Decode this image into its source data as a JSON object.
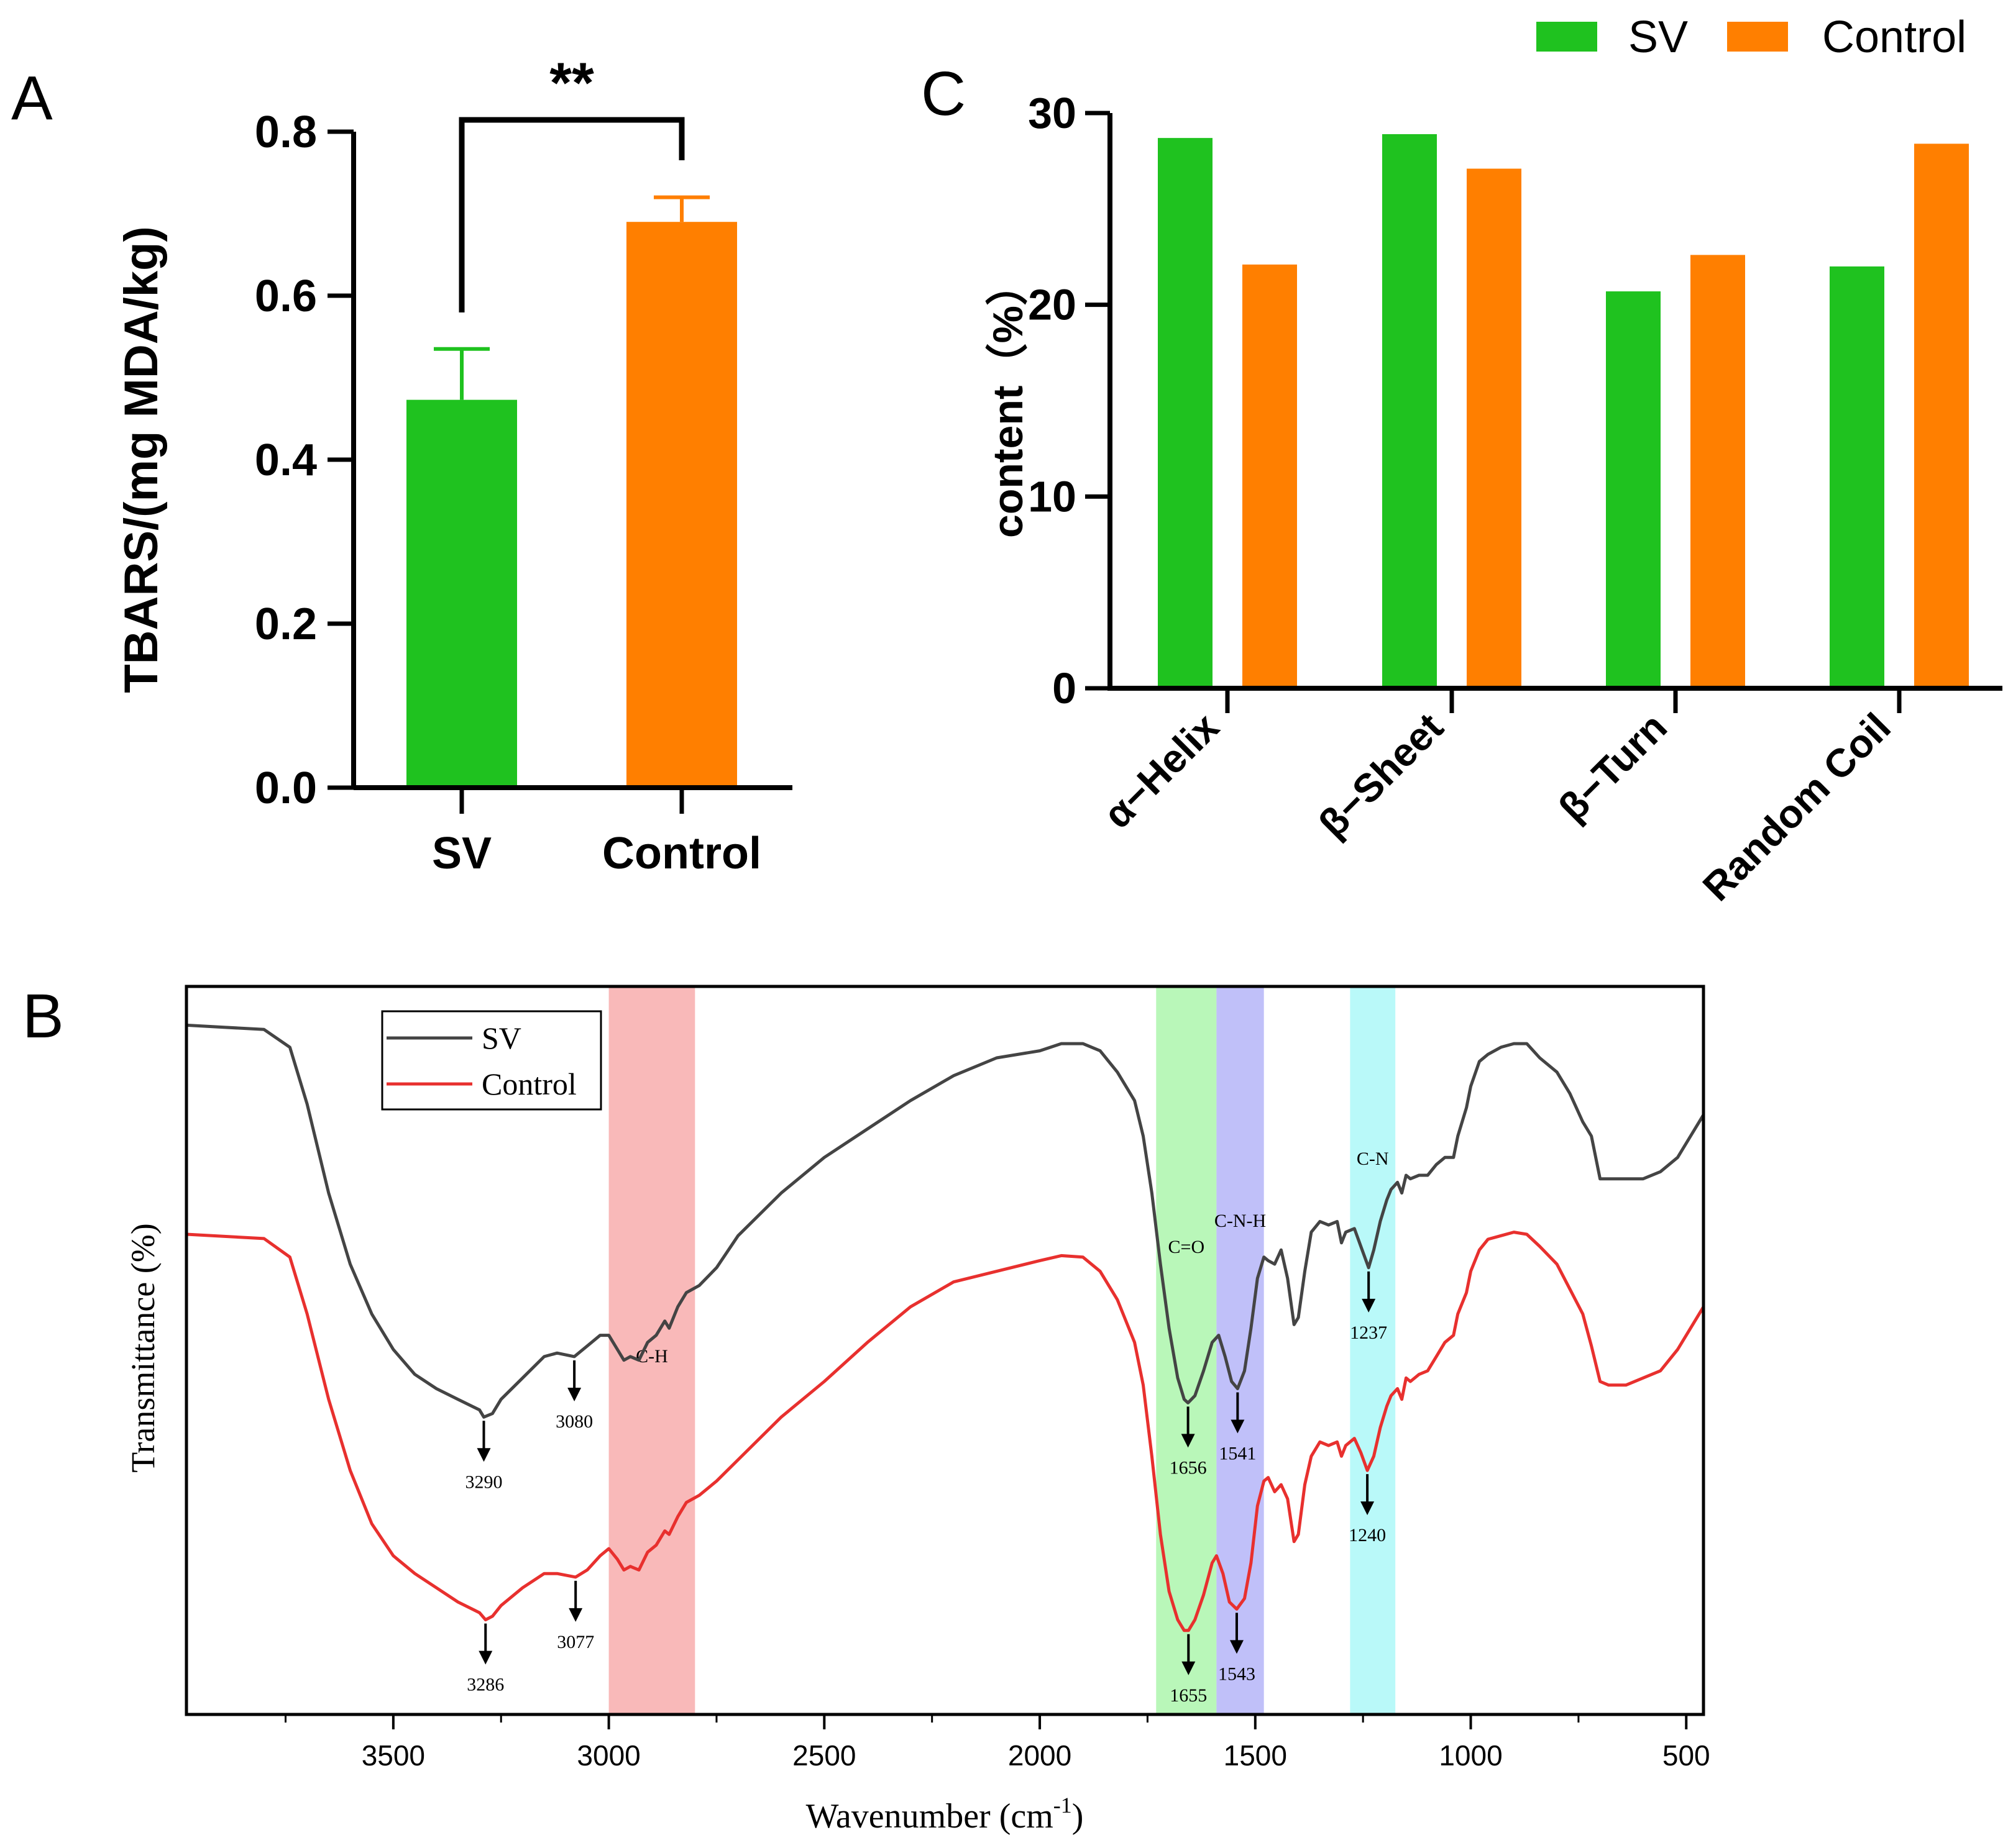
{
  "panels": {
    "a": {
      "letter": "A"
    },
    "b": {
      "letter": "B"
    },
    "c": {
      "letter": "C"
    }
  },
  "chart_data": [
    {
      "panel": "A",
      "type": "bar",
      "categories": [
        "SV",
        "Control"
      ],
      "values": [
        0.473,
        0.69
      ],
      "errors": [
        0.062,
        0.03
      ],
      "colors": [
        "#1fc21f",
        "#ff7f00"
      ],
      "ylabel": "TBARS/(mg MDA/kg)",
      "ylim": [
        0,
        0.8
      ],
      "yticks": [
        "0.0",
        "0.2",
        "0.4",
        "0.6",
        "0.8"
      ],
      "significance": "**"
    },
    {
      "panel": "C",
      "type": "bar",
      "categories": [
        "α−Helix",
        "β−Sheet",
        "β−Turn",
        "Random Coil"
      ],
      "series": [
        {
          "name": "SV",
          "color": "#1fc21f",
          "values": [
            28.7,
            28.9,
            20.7,
            22.0
          ]
        },
        {
          "name": "Control",
          "color": "#ff7f00",
          "values": [
            22.1,
            27.1,
            22.6,
            28.4
          ]
        }
      ],
      "ylabel": "content（%）",
      "ylim": [
        0,
        30
      ],
      "yticks": [
        "0",
        "10",
        "20",
        "30"
      ],
      "legend": {
        "position": "top-right",
        "labels": [
          "SV",
          "Control"
        ]
      }
    },
    {
      "panel": "B",
      "type": "line",
      "title": "",
      "xlabel": "Wavenumber (cm",
      "xlabel_sup": "-1",
      "xlabel_close": ")",
      "ylabel": "Transmittance (%)",
      "xlim": [
        3980,
        460
      ],
      "xticks": [
        "3500",
        "3000",
        "2500",
        "2000",
        "1500",
        "1000",
        "500"
      ],
      "legend": {
        "position": "top-left",
        "labels": [
          "SV",
          "Control"
        ]
      },
      "series": [
        {
          "name": "SV",
          "color": "#444444",
          "points": [
            [
              3980,
              0.956
            ],
            [
              3800,
              0.95
            ],
            [
              3740,
              0.925
            ],
            [
              3700,
              0.845
            ],
            [
              3650,
              0.72
            ],
            [
              3600,
              0.62
            ],
            [
              3550,
              0.55
            ],
            [
              3500,
              0.5
            ],
            [
              3450,
              0.465
            ],
            [
              3400,
              0.445
            ],
            [
              3350,
              0.43
            ],
            [
              3300,
              0.415
            ],
            [
              3290,
              0.405
            ],
            [
              3270,
              0.41
            ],
            [
              3250,
              0.43
            ],
            [
              3200,
              0.46
            ],
            [
              3150,
              0.49
            ],
            [
              3120,
              0.495
            ],
            [
              3080,
              0.49
            ],
            [
              3050,
              0.505
            ],
            [
              3020,
              0.52
            ],
            [
              3000,
              0.52
            ],
            [
              2980,
              0.5
            ],
            [
              2965,
              0.485
            ],
            [
              2950,
              0.49
            ],
            [
              2930,
              0.485
            ],
            [
              2910,
              0.51
            ],
            [
              2890,
              0.52
            ],
            [
              2870,
              0.54
            ],
            [
              2860,
              0.53
            ],
            [
              2840,
              0.56
            ],
            [
              2820,
              0.58
            ],
            [
              2790,
              0.59
            ],
            [
              2750,
              0.615
            ],
            [
              2700,
              0.66
            ],
            [
              2600,
              0.72
            ],
            [
              2500,
              0.77
            ],
            [
              2400,
              0.81
            ],
            [
              2300,
              0.85
            ],
            [
              2200,
              0.885
            ],
            [
              2100,
              0.91
            ],
            [
              2000,
              0.92
            ],
            [
              1950,
              0.93
            ],
            [
              1900,
              0.93
            ],
            [
              1860,
              0.92
            ],
            [
              1820,
              0.89
            ],
            [
              1780,
              0.85
            ],
            [
              1760,
              0.8
            ],
            [
              1740,
              0.72
            ],
            [
              1720,
              0.62
            ],
            [
              1700,
              0.53
            ],
            [
              1680,
              0.46
            ],
            [
              1665,
              0.43
            ],
            [
              1656,
              0.425
            ],
            [
              1640,
              0.435
            ],
            [
              1620,
              0.47
            ],
            [
              1600,
              0.51
            ],
            [
              1585,
              0.52
            ],
            [
              1570,
              0.49
            ],
            [
              1555,
              0.455
            ],
            [
              1541,
              0.445
            ],
            [
              1525,
              0.47
            ],
            [
              1510,
              0.53
            ],
            [
              1495,
              0.6
            ],
            [
              1480,
              0.63
            ],
            [
              1470,
              0.625
            ],
            [
              1455,
              0.62
            ],
            [
              1440,
              0.64
            ],
            [
              1425,
              0.6
            ],
            [
              1410,
              0.535
            ],
            [
              1400,
              0.545
            ],
            [
              1385,
              0.61
            ],
            [
              1370,
              0.665
            ],
            [
              1350,
              0.68
            ],
            [
              1330,
              0.675
            ],
            [
              1310,
              0.68
            ],
            [
              1300,
              0.65
            ],
            [
              1290,
              0.665
            ],
            [
              1270,
              0.67
            ],
            [
              1255,
              0.645
            ],
            [
              1237,
              0.615
            ],
            [
              1225,
              0.64
            ],
            [
              1210,
              0.68
            ],
            [
              1195,
              0.71
            ],
            [
              1185,
              0.725
            ],
            [
              1170,
              0.735
            ],
            [
              1160,
              0.72
            ],
            [
              1150,
              0.745
            ],
            [
              1140,
              0.74
            ],
            [
              1120,
              0.745
            ],
            [
              1100,
              0.745
            ],
            [
              1080,
              0.76
            ],
            [
              1060,
              0.77
            ],
            [
              1040,
              0.77
            ],
            [
              1030,
              0.8
            ],
            [
              1010,
              0.84
            ],
            [
              1000,
              0.87
            ],
            [
              980,
              0.905
            ],
            [
              960,
              0.915
            ],
            [
              930,
              0.925
            ],
            [
              900,
              0.93
            ],
            [
              870,
              0.93
            ],
            [
              840,
              0.91
            ],
            [
              800,
              0.89
            ],
            [
              770,
              0.86
            ],
            [
              740,
              0.82
            ],
            [
              720,
              0.8
            ],
            [
              700,
              0.74
            ],
            [
              680,
              0.74
            ],
            [
              640,
              0.74
            ],
            [
              600,
              0.74
            ],
            [
              560,
              0.75
            ],
            [
              520,
              0.77
            ],
            [
              490,
              0.8
            ],
            [
              460,
              0.83
            ]
          ]
        },
        {
          "name": "Control",
          "color": "#e8302e",
          "points": [
            [
              3980,
              0.662
            ],
            [
              3800,
              0.656
            ],
            [
              3740,
              0.63
            ],
            [
              3700,
              0.55
            ],
            [
              3650,
              0.43
            ],
            [
              3600,
              0.33
            ],
            [
              3550,
              0.255
            ],
            [
              3500,
              0.21
            ],
            [
              3450,
              0.185
            ],
            [
              3400,
              0.165
            ],
            [
              3350,
              0.145
            ],
            [
              3300,
              0.13
            ],
            [
              3286,
              0.12
            ],
            [
              3270,
              0.125
            ],
            [
              3250,
              0.14
            ],
            [
              3200,
              0.165
            ],
            [
              3150,
              0.185
            ],
            [
              3120,
              0.185
            ],
            [
              3077,
              0.18
            ],
            [
              3050,
              0.19
            ],
            [
              3020,
              0.21
            ],
            [
              3000,
              0.22
            ],
            [
              2980,
              0.205
            ],
            [
              2965,
              0.19
            ],
            [
              2950,
              0.195
            ],
            [
              2930,
              0.19
            ],
            [
              2910,
              0.215
            ],
            [
              2890,
              0.225
            ],
            [
              2870,
              0.245
            ],
            [
              2860,
              0.24
            ],
            [
              2840,
              0.265
            ],
            [
              2820,
              0.285
            ],
            [
              2790,
              0.295
            ],
            [
              2750,
              0.315
            ],
            [
              2700,
              0.345
            ],
            [
              2600,
              0.405
            ],
            [
              2500,
              0.455
            ],
            [
              2400,
              0.51
            ],
            [
              2300,
              0.56
            ],
            [
              2200,
              0.595
            ],
            [
              2100,
              0.61
            ],
            [
              2000,
              0.625
            ],
            [
              1950,
              0.632
            ],
            [
              1900,
              0.63
            ],
            [
              1860,
              0.61
            ],
            [
              1820,
              0.57
            ],
            [
              1780,
              0.51
            ],
            [
              1760,
              0.45
            ],
            [
              1740,
              0.35
            ],
            [
              1720,
              0.24
            ],
            [
              1700,
              0.16
            ],
            [
              1680,
              0.12
            ],
            [
              1665,
              0.105
            ],
            [
              1655,
              0.105
            ],
            [
              1640,
              0.12
            ],
            [
              1620,
              0.155
            ],
            [
              1600,
              0.2
            ],
            [
              1590,
              0.21
            ],
            [
              1575,
              0.185
            ],
            [
              1560,
              0.145
            ],
            [
              1543,
              0.135
            ],
            [
              1525,
              0.15
            ],
            [
              1510,
              0.2
            ],
            [
              1495,
              0.28
            ],
            [
              1480,
              0.315
            ],
            [
              1470,
              0.32
            ],
            [
              1455,
              0.3
            ],
            [
              1440,
              0.31
            ],
            [
              1425,
              0.29
            ],
            [
              1410,
              0.23
            ],
            [
              1400,
              0.24
            ],
            [
              1385,
              0.31
            ],
            [
              1370,
              0.35
            ],
            [
              1350,
              0.37
            ],
            [
              1330,
              0.365
            ],
            [
              1310,
              0.37
            ],
            [
              1300,
              0.35
            ],
            [
              1290,
              0.365
            ],
            [
              1270,
              0.375
            ],
            [
              1255,
              0.355
            ],
            [
              1240,
              0.33
            ],
            [
              1225,
              0.35
            ],
            [
              1210,
              0.39
            ],
            [
              1195,
              0.42
            ],
            [
              1185,
              0.435
            ],
            [
              1170,
              0.445
            ],
            [
              1160,
              0.43
            ],
            [
              1150,
              0.46
            ],
            [
              1140,
              0.455
            ],
            [
              1120,
              0.465
            ],
            [
              1100,
              0.47
            ],
            [
              1080,
              0.49
            ],
            [
              1060,
              0.51
            ],
            [
              1040,
              0.52
            ],
            [
              1030,
              0.55
            ],
            [
              1010,
              0.58
            ],
            [
              1000,
              0.61
            ],
            [
              980,
              0.64
            ],
            [
              960,
              0.655
            ],
            [
              930,
              0.66
            ],
            [
              900,
              0.665
            ],
            [
              870,
              0.662
            ],
            [
              840,
              0.645
            ],
            [
              800,
              0.62
            ],
            [
              770,
              0.585
            ],
            [
              740,
              0.55
            ],
            [
              720,
              0.505
            ],
            [
              700,
              0.455
            ],
            [
              680,
              0.45
            ],
            [
              640,
              0.45
            ],
            [
              600,
              0.46
            ],
            [
              560,
              0.47
            ],
            [
              520,
              0.5
            ],
            [
              490,
              0.53
            ],
            [
              460,
              0.56
            ]
          ]
        }
      ],
      "bands": [
        {
          "from": 3000,
          "to": 2800,
          "color": "#f7a8a8",
          "label": "C-H"
        },
        {
          "from": 1730,
          "to": 1590,
          "color": "#a8f5a8",
          "label": "C=O"
        },
        {
          "from": 1590,
          "to": 1480,
          "color": "#b0b0f7",
          "label": "C-N-H"
        },
        {
          "from": 1280,
          "to": 1175,
          "color": "#a8f7f7",
          "label": "C-N"
        }
      ],
      "annotations": [
        {
          "text": "3290",
          "x": 3290,
          "series": 0
        },
        {
          "text": "3080",
          "x": 3080,
          "series": 0
        },
        {
          "text": "1656",
          "x": 1656,
          "series": 0
        },
        {
          "text": "1541",
          "x": 1541,
          "series": 0
        },
        {
          "text": "1237",
          "x": 1237,
          "series": 0
        },
        {
          "text": "3286",
          "x": 3286,
          "series": 1
        },
        {
          "text": "3077",
          "x": 3077,
          "series": 1
        },
        {
          "text": "1655",
          "x": 1655,
          "series": 1
        },
        {
          "text": "1543",
          "x": 1543,
          "series": 1
        },
        {
          "text": "1240",
          "x": 1240,
          "series": 1
        }
      ]
    }
  ]
}
